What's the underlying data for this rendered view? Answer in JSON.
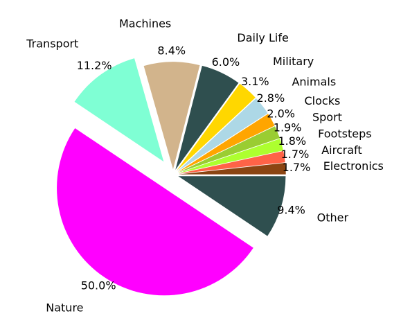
{
  "chart_data": {
    "type": "pie",
    "categories": [
      "Electronics",
      "Aircraft",
      "Footsteps",
      "Sport",
      "Clocks",
      "Animals",
      "Military",
      "Daily Life",
      "Machines",
      "Transport",
      "Nature",
      "Other"
    ],
    "values": [
      1.7,
      1.7,
      1.8,
      1.9,
      2.0,
      2.8,
      3.1,
      6.0,
      8.4,
      11.2,
      50.0,
      9.4
    ],
    "value_labels": [
      "1.7%",
      "1.7%",
      "1.8%",
      "1.9%",
      "2.0%",
      "2.8%",
      "3.1%",
      "6.0%",
      "8.4%",
      "11.2%",
      "50.0%",
      "9.4%"
    ],
    "colors": [
      "#8b4513",
      "#ff6347",
      "#adff2f",
      "#9acd32",
      "#ffa500",
      "#add8e6",
      "#ffd700",
      "#2f4f4f",
      "#d2b48c",
      "#7fffd4",
      "#ff00ff",
      "#2f4f4f"
    ],
    "explode": [
      0.05,
      0.05,
      0.05,
      0.05,
      0.05,
      0.05,
      0.05,
      0.05,
      0.05,
      0.15,
      0.15,
      0.05
    ],
    "startangle": 0
  }
}
